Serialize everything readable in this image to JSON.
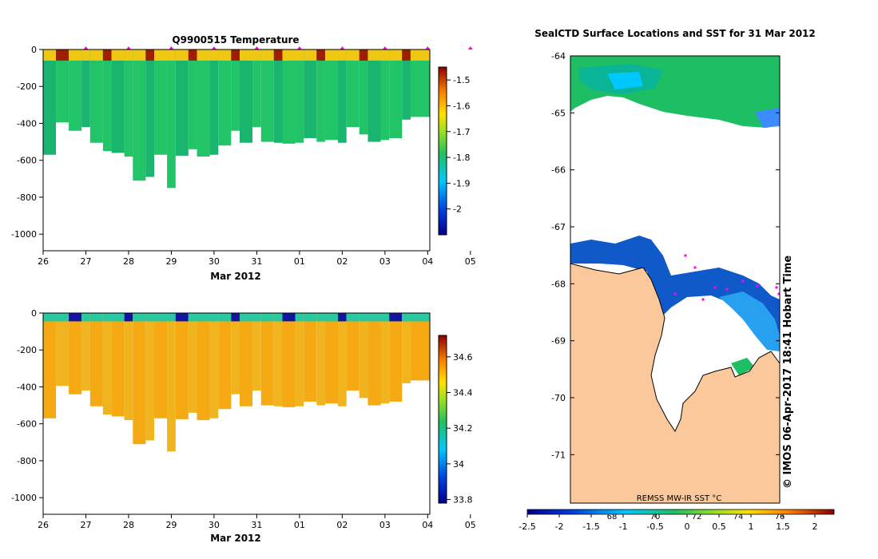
{
  "chart_data": [
    {
      "type": "heatmap",
      "title": "Q9900515  Temperature",
      "xlabel": "Mar 2012",
      "ylabel": "",
      "x_tick_labels": [
        "26",
        "27",
        "28",
        "29",
        "30",
        "31",
        "01",
        "02",
        "03",
        "04",
        "05"
      ],
      "y_tick_labels": [
        "0",
        "-200",
        "-400",
        "-600",
        "-800",
        "-1000"
      ],
      "ylim": [
        -1090,
        0
      ],
      "colorbar_ticks": [
        "-1.5",
        "-1.6",
        "-1.7",
        "-1.8",
        "-1.9",
        "-2"
      ],
      "colorbar_range": [
        -2.1,
        -1.45
      ],
      "profile_max_depths": [
        570,
        395,
        440,
        420,
        505,
        550,
        560,
        580,
        710,
        690,
        570,
        750,
        575,
        540,
        580,
        570,
        520,
        440,
        505,
        420,
        500,
        505,
        510,
        505,
        480,
        500,
        490,
        505,
        420,
        460,
        500,
        490,
        480,
        380,
        365
      ],
      "profile_times": [
        26.0,
        26.3,
        26.6,
        26.9,
        27.1,
        27.4,
        27.6,
        27.9,
        28.1,
        28.4,
        28.6,
        28.9,
        29.1,
        29.4,
        29.6,
        29.9,
        30.1,
        30.4,
        30.6,
        30.9,
        31.1,
        31.4,
        31.6,
        31.9,
        32.1,
        32.4,
        32.6,
        32.9,
        33.1,
        33.4,
        33.6,
        33.9,
        34.1,
        34.4,
        34.6
      ]
    },
    {
      "type": "heatmap",
      "title": "",
      "xlabel": "Mar 2012",
      "ylabel": "",
      "x_tick_labels": [
        "26",
        "27",
        "28",
        "29",
        "30",
        "31",
        "01",
        "02",
        "03",
        "04",
        "05"
      ],
      "y_tick_labels": [
        "0",
        "-200",
        "-400",
        "-600",
        "-800",
        "-1000"
      ],
      "ylim": [
        -1090,
        0
      ],
      "colorbar_ticks": [
        "34.6",
        "34.4",
        "34.2",
        "34",
        "33.8"
      ],
      "colorbar_range": [
        33.78,
        34.72
      ]
    },
    {
      "type": "heatmap",
      "title": "SealCTD Surface Locations and SST for 31 Mar 2012",
      "y_tick_labels": [
        "-64",
        "-65",
        "-66",
        "-67",
        "-68",
        "-69",
        "-70",
        "-71"
      ],
      "ylim": [
        -71.85,
        -64
      ],
      "colorbar_label": "REMSS MW-IR SST °C",
      "colorbar_ticks": [
        "-2.5",
        "-2",
        "-1.5",
        "-1",
        "-0.5",
        "0",
        "0.5",
        "1",
        "1.5",
        "2"
      ],
      "colorbar_range": [
        -2.5,
        2.3
      ],
      "overlay_labels": [
        "68",
        "70",
        "72",
        "74",
        "76"
      ]
    }
  ],
  "credit_text": "© IMOS 06-Apr-2017 18:41 Hobart Time",
  "colors": {
    "land": "#fac89b",
    "deep_blue": "#0f5ac8",
    "green": "#1ebe64",
    "orange": "#f5aa14",
    "marker": "#ff00ff"
  }
}
